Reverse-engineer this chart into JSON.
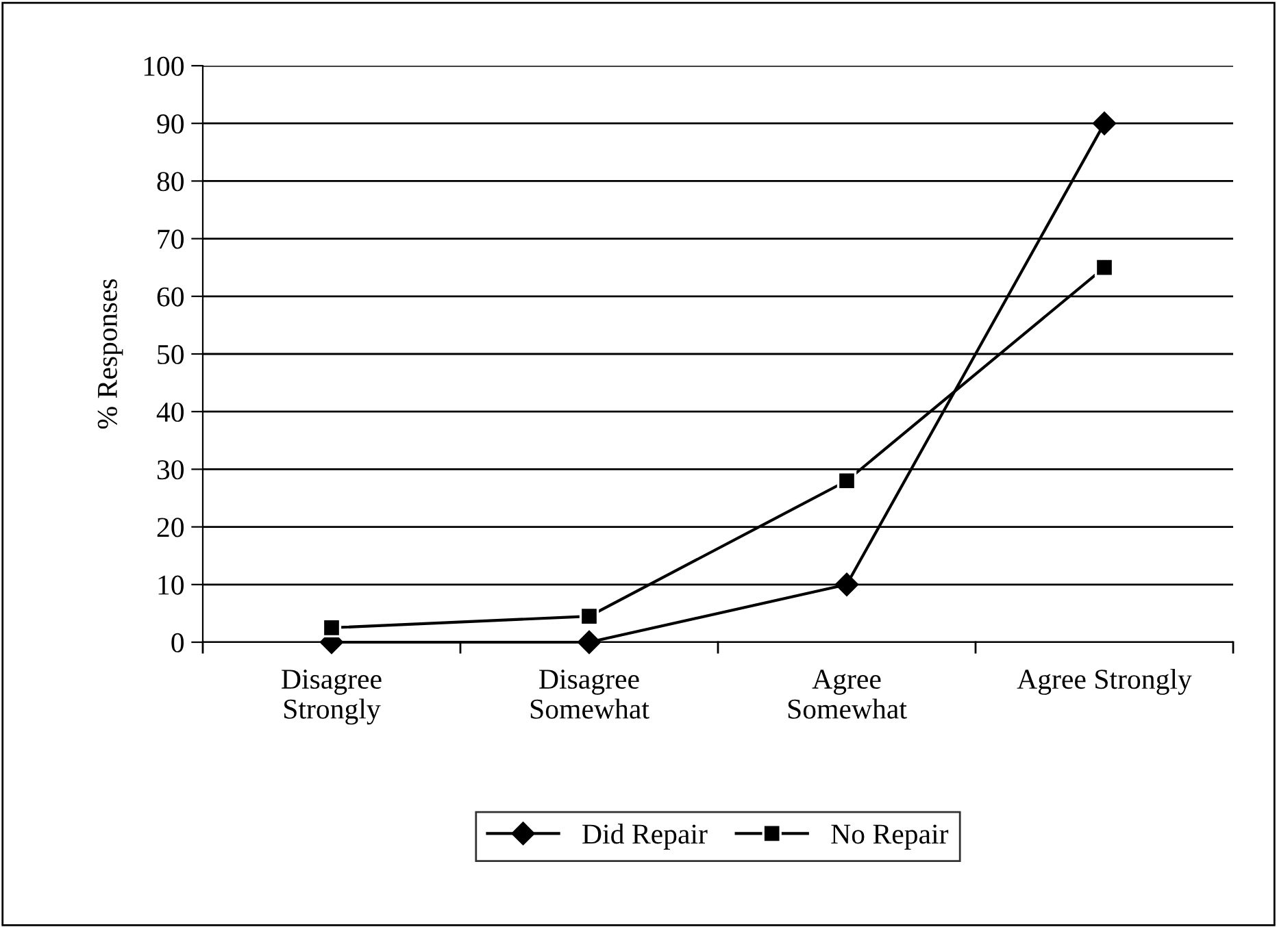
{
  "chart_data": {
    "type": "line",
    "ylabel": "% Responses",
    "categories": [
      "Disagree\nStrongly",
      "Disagree\nSomewhat",
      "Agree\nSomewhat",
      "Agree Strongly"
    ],
    "series": [
      {
        "name": "Did Repair",
        "color": "#000000",
        "marker": "diamond",
        "values": [
          0,
          0,
          10,
          90
        ]
      },
      {
        "name": "No Repair",
        "color": "#000000",
        "marker": "square",
        "values": [
          2.5,
          4.5,
          28,
          65
        ]
      }
    ],
    "ylim": [
      0,
      100
    ],
    "yticks": [
      0,
      10,
      20,
      30,
      40,
      50,
      60,
      70,
      80,
      90,
      100
    ],
    "grid": "y",
    "legend": "bottom",
    "line_style": "solid"
  }
}
